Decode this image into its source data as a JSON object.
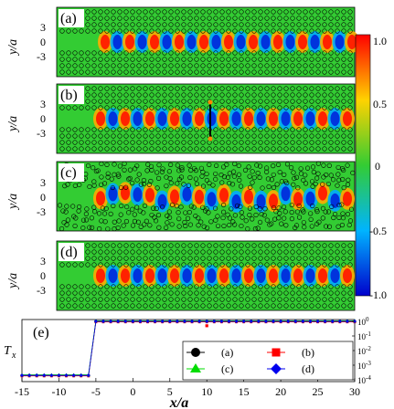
{
  "panels": [
    {
      "label": "(a)"
    },
    {
      "label": "(b)"
    },
    {
      "label": "(c)"
    },
    {
      "label": "(d)"
    },
    {
      "label": "(e)"
    }
  ],
  "field_panels": {
    "ylabel": "y/a",
    "yticks": [
      "3",
      "0",
      "-3"
    ]
  },
  "colorbar": {
    "ticks": [
      "1.0",
      "0.5",
      "0",
      "-0.5",
      "-1.0"
    ],
    "range": [
      -1.0,
      1.0
    ],
    "colors": [
      "#0000cc",
      "#00b4ff",
      "#33cc33",
      "#ffd200",
      "#ff0000"
    ]
  },
  "chart_data": {
    "type": "scatter",
    "xlabel": "x/a",
    "ylabel": "Tx",
    "ylabel_main": "T",
    "ylabel_sub": "x",
    "xlim": [
      -15,
      30
    ],
    "ylim_log10": [
      -4,
      0
    ],
    "y_scale": "log",
    "xticks": [
      "-15",
      "-10",
      "-5",
      "0",
      "5",
      "10",
      "15",
      "20",
      "25",
      "30"
    ],
    "yticks": [
      "10^0",
      "10^-1",
      "10^-2",
      "10^-3",
      "10^-4"
    ],
    "legend_position": "bottom-right",
    "series": [
      {
        "name": "(a)",
        "color": "#000000",
        "marker": "circle"
      },
      {
        "name": "(b)",
        "color": "#ff0000",
        "marker": "square"
      },
      {
        "name": "(c)",
        "color": "#00dd00",
        "marker": "triangle"
      },
      {
        "name": "(d)",
        "color": "#0000ee",
        "marker": "diamond"
      }
    ],
    "x": [
      -15,
      -14,
      -13,
      -12,
      -11,
      -10,
      -9,
      -8,
      -7,
      -6,
      -5,
      -4,
      -3,
      -2,
      -1,
      0,
      1,
      2,
      3,
      4,
      5,
      6,
      7,
      8,
      9,
      10,
      11,
      12,
      13,
      14,
      15,
      16,
      17,
      18,
      19,
      20,
      21,
      22,
      23,
      24,
      25,
      26,
      27,
      28,
      29,
      30
    ],
    "y": [
      0.0002,
      0.0002,
      0.0002,
      0.0002,
      0.0002,
      0.0002,
      0.0002,
      0.0002,
      0.0002,
      0.0002,
      1,
      1,
      1,
      1,
      1,
      1,
      1,
      1,
      1,
      1,
      1,
      1,
      1,
      1,
      1,
      1,
      1,
      1,
      1,
      1,
      1,
      1,
      1,
      1,
      1,
      1,
      1,
      1,
      1,
      1,
      1,
      1,
      1,
      1,
      1,
      1
    ],
    "outlier": {
      "series": "(b)",
      "x": 10,
      "y": 0.5
    }
  }
}
